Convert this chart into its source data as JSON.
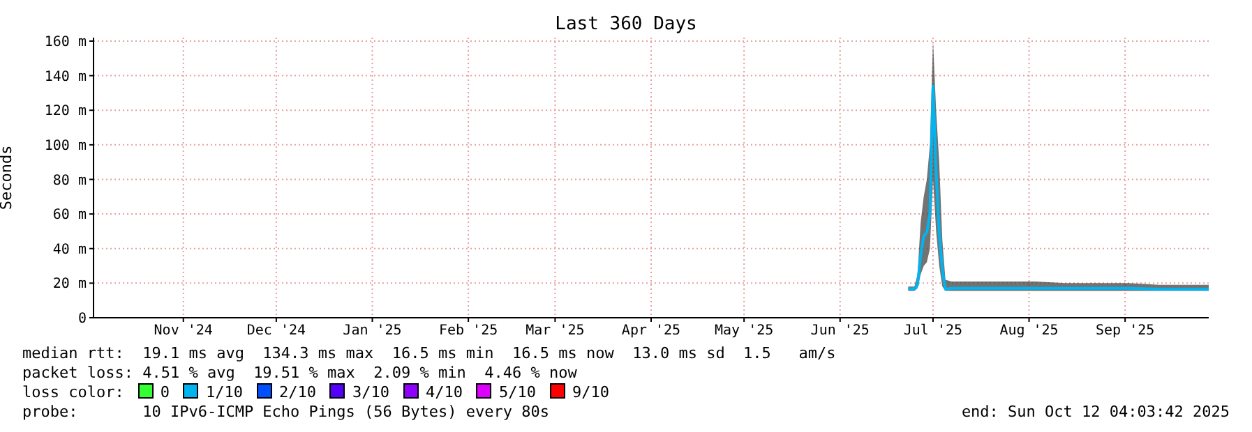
{
  "chart_data": {
    "type": "line",
    "title": "Last 360 Days",
    "ylabel": "Seconds",
    "x": [
      "2025-07-07",
      "2025-07-09",
      "2025-07-10",
      "2025-07-11",
      "2025-07-12",
      "2025-07-13",
      "2025-07-14",
      "2025-07-15",
      "2025-07-16",
      "2025-07-17",
      "2025-07-18",
      "2025-07-19",
      "2025-07-21",
      "2025-07-28",
      "2025-08-07",
      "2025-08-17",
      "2025-08-27",
      "2025-09-06",
      "2025-09-16",
      "2025-09-26",
      "2025-10-06",
      "2025-10-12"
    ],
    "series": [
      {
        "color": "#00b4f0",
        "values": [
          16.7,
          16.7,
          19,
          36,
          47,
          49.5,
          60,
          134,
          85,
          49,
          28,
          16.5,
          17,
          17,
          17,
          17,
          17,
          17,
          17,
          16.5,
          16.5,
          16.5
        ],
        "lower": [
          15.5,
          15.5,
          17,
          25,
          30,
          32,
          40,
          80,
          50,
          30,
          18,
          15.5,
          15.5,
          15.5,
          15.5,
          15.5,
          15.5,
          15.5,
          15.5,
          15.5,
          15.5,
          15.5
        ],
        "upper": [
          18,
          18,
          25,
          55,
          70,
          80,
          100,
          160,
          120,
          90,
          45,
          22,
          21,
          21,
          21,
          21,
          20,
          20,
          20,
          19,
          19,
          19
        ]
      }
    ],
    "xlim": [
      "2024-10-17",
      "2025-10-12"
    ],
    "xticks": [
      {
        "value": "2024-11-15",
        "label": "Nov '24"
      },
      {
        "value": "2024-12-15",
        "label": "Dec '24"
      },
      {
        "value": "2025-01-15",
        "label": "Jan '25"
      },
      {
        "value": "2025-02-15",
        "label": "Feb '25"
      },
      {
        "value": "2025-03-15",
        "label": "Mar '25"
      },
      {
        "value": "2025-04-15",
        "label": "Apr '25"
      },
      {
        "value": "2025-05-15",
        "label": "May '25"
      },
      {
        "value": "2025-06-15",
        "label": "Jun '25"
      },
      {
        "value": "2025-07-15",
        "label": "Jul '25"
      },
      {
        "value": "2025-08-15",
        "label": "Aug '25"
      },
      {
        "value": "2025-09-15",
        "label": "Sep '25"
      }
    ],
    "ylim": [
      0,
      162
    ],
    "yticks": [
      0,
      {
        "value": 20,
        "label": "20 m"
      },
      {
        "value": 40,
        "label": "40 m"
      },
      {
        "value": 60,
        "label": "60 m"
      },
      {
        "value": 80,
        "label": "80 m"
      },
      {
        "value": 100,
        "label": "100 m"
      },
      {
        "value": 120,
        "label": "120 m"
      },
      {
        "value": 140,
        "label": "140 m"
      },
      {
        "value": 160,
        "label": "160 m"
      }
    ],
    "grid": true,
    "annotations": [
      "median rtt:  19.1 ms avg  134.3 ms max  16.5 ms min  16.5 ms now  13.0 ms sd  1.5   am/s",
      "packet loss: 4.51 % avg  19.51 % max  2.09 % min  4.46 % now",
      "loss color:  0  1/10  2/10  3/10  4/10  5/10  9/10",
      "probe:       10 IPv6-ICMP Echo Pings (56 Bytes) every 80s",
      "end: Sun Oct 12 04:03:42 2025"
    ]
  }
}
